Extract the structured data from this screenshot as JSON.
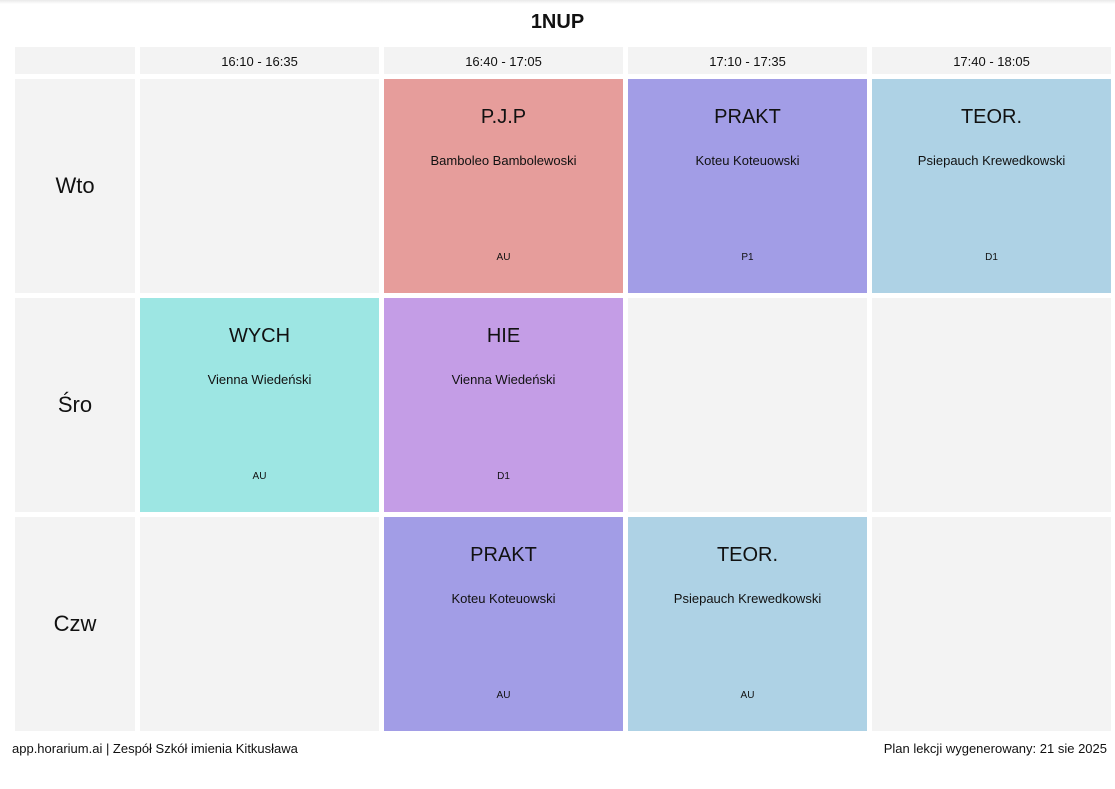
{
  "title": "1NUP",
  "times": [
    "16:10 - 16:35",
    "16:40 - 17:05",
    "17:10 - 17:35",
    "17:40 - 18:05"
  ],
  "days": [
    "Wto",
    "Śro",
    "Czw"
  ],
  "colors": {
    "pjp": "#e69d9b",
    "prakt": "#a29de6",
    "teor": "#aed2e5",
    "wych": "#9de6e3",
    "hie": "#c49de6",
    "empty": "#f3f3f3"
  },
  "schedule": {
    "wto": {
      "p2": {
        "subject": "P.J.P",
        "teacher": "Bamboleo Bambolewoski",
        "room": "AU"
      },
      "p3": {
        "subject": "PRAKT",
        "teacher": "Koteu Koteuowski",
        "room": "P1"
      },
      "p4": {
        "subject": "TEOR.",
        "teacher": "Psiepauch Krewedkowski",
        "room": "D1"
      }
    },
    "sro": {
      "p1": {
        "subject": "WYCH",
        "teacher": "Vienna Wiedeński",
        "room": "AU"
      },
      "p2": {
        "subject": "HIE",
        "teacher": "Vienna Wiedeński",
        "room": "D1"
      }
    },
    "czw": {
      "p2": {
        "subject": "PRAKT",
        "teacher": "Koteu Koteuowski",
        "room": "AU"
      },
      "p3": {
        "subject": "TEOR.",
        "teacher": "Psiepauch Krewedkowski",
        "room": "AU"
      }
    }
  },
  "footer": {
    "left": "app.horarium.ai | Zespół Szkół imienia Kitkusława",
    "right": "Plan lekcji wygenerowany: 21 sie 2025"
  }
}
